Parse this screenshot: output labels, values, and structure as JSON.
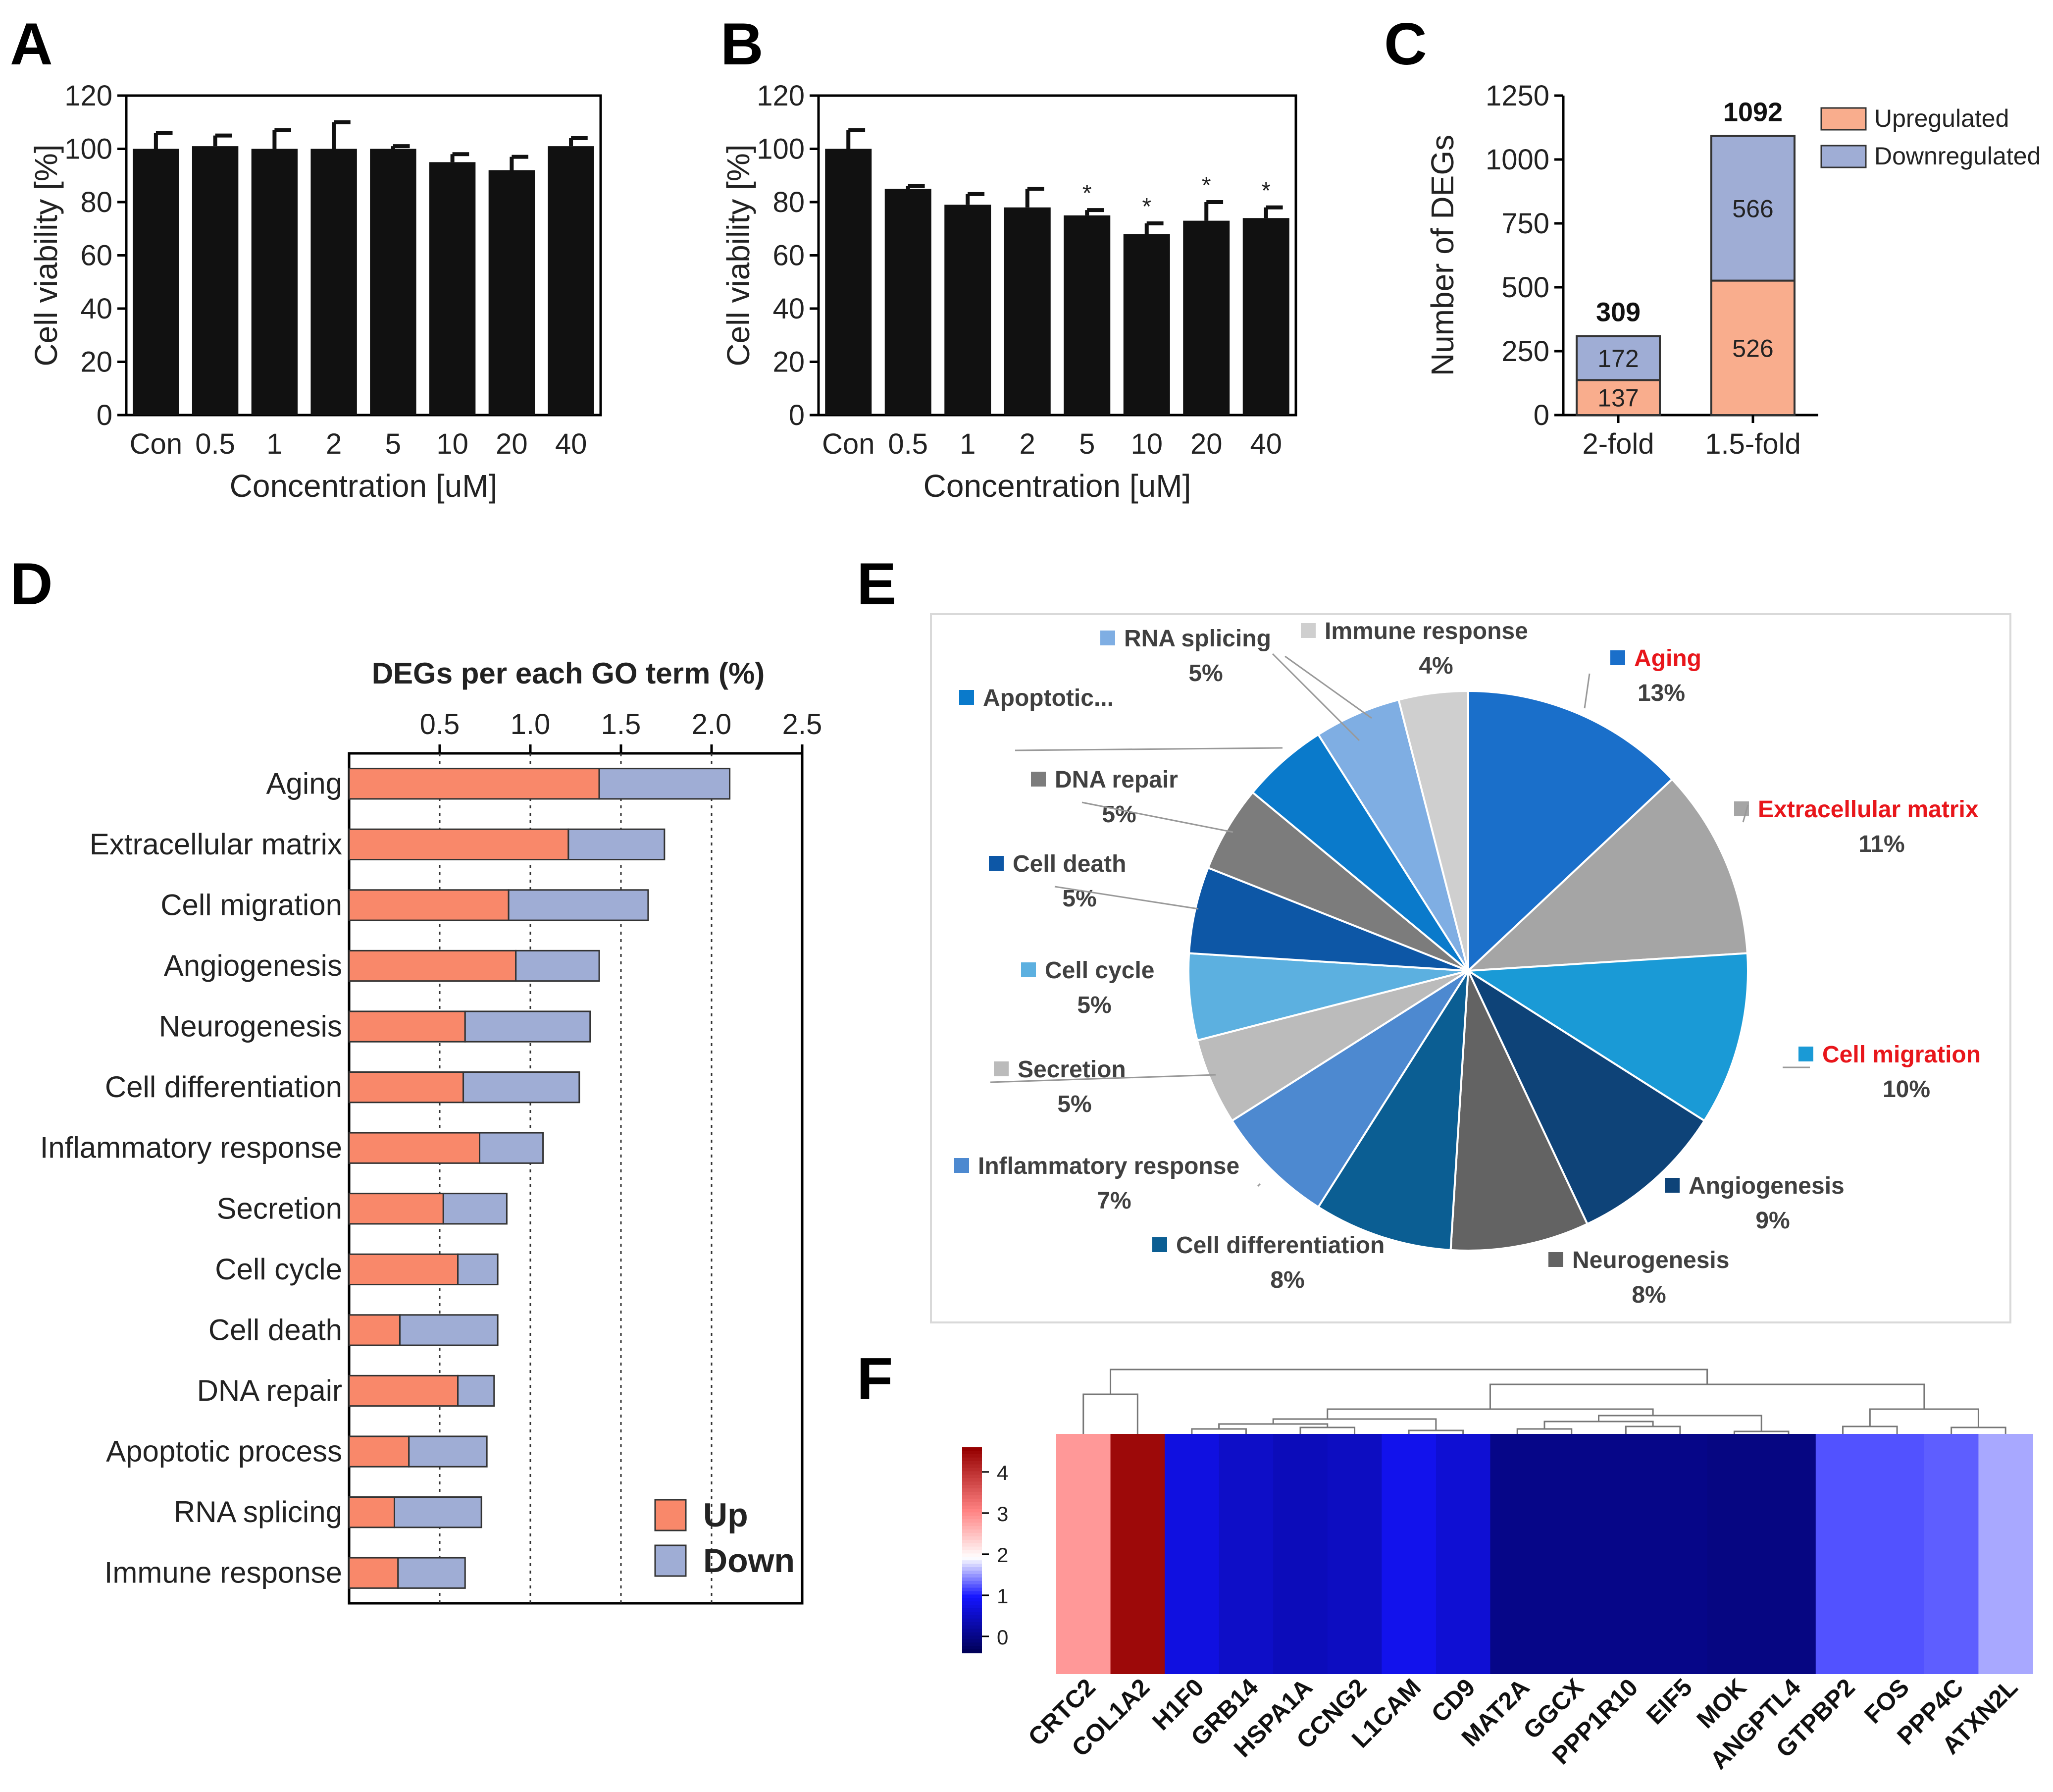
{
  "panels": {
    "A": {
      "letter": "A"
    },
    "B": {
      "letter": "B"
    },
    "C": {
      "letter": "C"
    },
    "D": {
      "letter": "D"
    },
    "E": {
      "letter": "E"
    },
    "F": {
      "letter": "F"
    }
  },
  "chart_data": [
    {
      "id": "A",
      "type": "bar",
      "categories": [
        "Con",
        "0.5",
        "1",
        "2",
        "5",
        "10",
        "20",
        "40"
      ],
      "values": [
        100,
        101,
        100,
        100,
        100,
        95,
        92,
        101
      ],
      "errors": [
        6,
        4,
        7,
        10,
        1,
        3,
        5,
        3
      ],
      "xlabel": "Concentration [uM]",
      "ylabel": "Cell viability [%]",
      "ylim": [
        0,
        120
      ],
      "yticks": [
        "0",
        "20",
        "40",
        "60",
        "80",
        "100",
        "120"
      ],
      "color": "#111111"
    },
    {
      "id": "B",
      "type": "bar",
      "categories": [
        "Con",
        "0.5",
        "1",
        "2",
        "5",
        "10",
        "20",
        "40"
      ],
      "values": [
        100,
        85,
        79,
        78,
        75,
        68,
        73,
        74
      ],
      "errors": [
        7,
        1,
        4,
        7,
        2,
        4,
        7,
        4
      ],
      "significance": [
        "",
        "",
        "",
        "",
        "*",
        "*",
        "*",
        "*"
      ],
      "xlabel": "Concentration [uM]",
      "ylabel": "Cell viability [%]",
      "ylim": [
        0,
        120
      ],
      "yticks": [
        "0",
        "20",
        "40",
        "60",
        "80",
        "100",
        "120"
      ],
      "color": "#111111"
    },
    {
      "id": "C",
      "type": "bar",
      "stacked": true,
      "categories": [
        "2-fold",
        "1.5-fold"
      ],
      "totals": [
        "309",
        "1092"
      ],
      "series": [
        {
          "name": "Upregulated",
          "values": [
            137,
            526
          ],
          "labels": [
            "137",
            "526"
          ],
          "color": "#f9ad8d"
        },
        {
          "name": "Downregulated",
          "values": [
            172,
            566
          ],
          "labels": [
            "172",
            "566"
          ],
          "color": "#9fadd5"
        }
      ],
      "ylabel": "Number of DEGs",
      "ylim": [
        0,
        1250
      ],
      "yticks": [
        "0",
        "250",
        "500",
        "750",
        "1000",
        "1250"
      ],
      "legend": "top-right"
    },
    {
      "id": "D",
      "type": "bar",
      "orientation": "horizontal",
      "stacked": true,
      "title": "DEGs per each GO term (%)",
      "categories": [
        "Aging",
        "Extracellular matrix",
        "Cell migration",
        "Angiogenesis",
        "Neurogenesis",
        "Cell differentiation",
        "Inflammatory response",
        "Secretion",
        "Cell cycle",
        "Cell death",
        "DNA repair",
        "Apoptotic process",
        "RNA splicing",
        "Immune response"
      ],
      "series": [
        {
          "name": "Up",
          "values": [
            1.38,
            1.21,
            0.88,
            0.92,
            0.64,
            0.63,
            0.72,
            0.52,
            0.6,
            0.28,
            0.6,
            0.33,
            0.25,
            0.27
          ],
          "color": "#f9886a"
        },
        {
          "name": "Down",
          "values": [
            0.72,
            0.53,
            0.77,
            0.46,
            0.69,
            0.64,
            0.35,
            0.35,
            0.22,
            0.54,
            0.2,
            0.43,
            0.48,
            0.37
          ],
          "color": "#9fadd5"
        }
      ],
      "xlim": [
        0,
        2.5
      ],
      "xticks": [
        "0.5",
        "1.0",
        "1.5",
        "2.0",
        "2.5"
      ],
      "legend": "bottom-right"
    },
    {
      "id": "E",
      "type": "pie",
      "slices": [
        {
          "label": "Aging",
          "pct": "13%",
          "value": 13,
          "color": "#1a6fca",
          "highlight": true
        },
        {
          "label": "Extracellular matrix",
          "pct": "11%",
          "value": 11,
          "color": "#a5a5a5",
          "highlight": true
        },
        {
          "label": "Cell migration",
          "pct": "10%",
          "value": 10,
          "color": "#1a9ad6",
          "highlight": true
        },
        {
          "label": "Angiogenesis",
          "pct": "9%",
          "value": 9,
          "color": "#0e4378",
          "highlight": false
        },
        {
          "label": "Neurogenesis",
          "pct": "8%",
          "value": 8,
          "color": "#636363",
          "highlight": false
        },
        {
          "label": "Cell differentiation",
          "pct": "8%",
          "value": 8,
          "color": "#0b5e93",
          "highlight": false
        },
        {
          "label": "Inflammatory response",
          "pct": "7%",
          "value": 7,
          "color": "#4d89d0",
          "highlight": false
        },
        {
          "label": "Secretion",
          "pct": "5%",
          "value": 5,
          "color": "#bbbbbb",
          "highlight": false
        },
        {
          "label": "Cell cycle",
          "pct": "5%",
          "value": 5,
          "color": "#5cb0e0",
          "highlight": false
        },
        {
          "label": "Cell death",
          "pct": "5%",
          "value": 5,
          "color": "#0d57a6",
          "highlight": false
        },
        {
          "label": "DNA repair",
          "pct": "5%",
          "value": 5,
          "color": "#7c7c7c",
          "highlight": false
        },
        {
          "label": "Apoptotic...",
          "pct": "",
          "value": 5,
          "color": "#0a7acb",
          "highlight": false
        },
        {
          "label": "RNA splicing",
          "pct": "5%",
          "value": 5,
          "color": "#7faee3",
          "highlight": false
        },
        {
          "label": "Immune response",
          "pct": "4%",
          "value": 4,
          "color": "#cfcfcf",
          "highlight": false
        }
      ],
      "highlight_color": "#e8161b"
    },
    {
      "id": "F",
      "type": "heatmap",
      "genes": [
        "CRTC2",
        "COL1A2",
        "H1F0",
        "GRB14",
        "HSPA1A",
        "CCNG2",
        "L1CAM",
        "CD9",
        "MAT2A",
        "GGCX",
        "PPP1R10",
        "EIF5",
        "MOK",
        "ANGPTL4",
        "GTPBP2",
        "FOS",
        "PPP4C",
        "ATXN2L"
      ],
      "values": [
        2.9,
        4.5,
        0.75,
        0.55,
        0.45,
        0.5,
        0.85,
        0.65,
        0.05,
        0.05,
        0.05,
        0.05,
        0.0,
        0.0,
        1.25,
        1.25,
        1.3,
        1.6
      ],
      "colorbar": {
        "ticks": [
          "0",
          "1",
          "2",
          "3",
          "4"
        ],
        "min": -0.4,
        "max": 4.6
      }
    }
  ]
}
